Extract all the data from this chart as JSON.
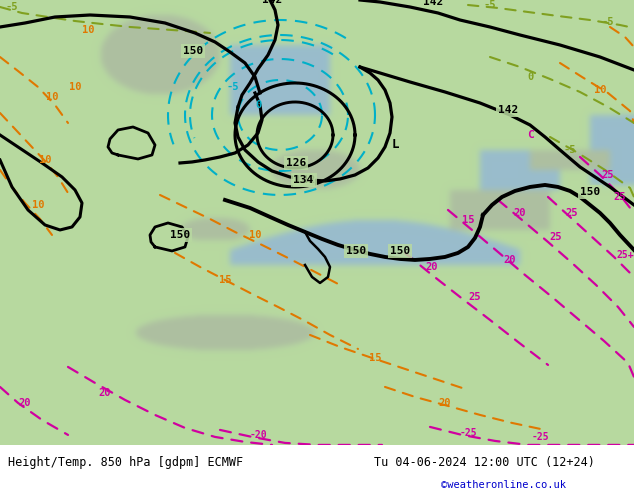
{
  "title_left": "Height/Temp. 850 hPa [gdpm] ECMWF",
  "title_right": "Tu 04-06-2024 12:00 UTC (12+24)",
  "watermark": "©weatheronline.co.uk",
  "footer_bg": "#d8d8d8",
  "watermark_color": "#0000cc",
  "figsize": [
    6.34,
    4.9
  ],
  "dpi": 100,
  "map_bg": "#b8d9a0",
  "land_green": "#b8d9a0",
  "sea_blue": "#7ab8d0"
}
